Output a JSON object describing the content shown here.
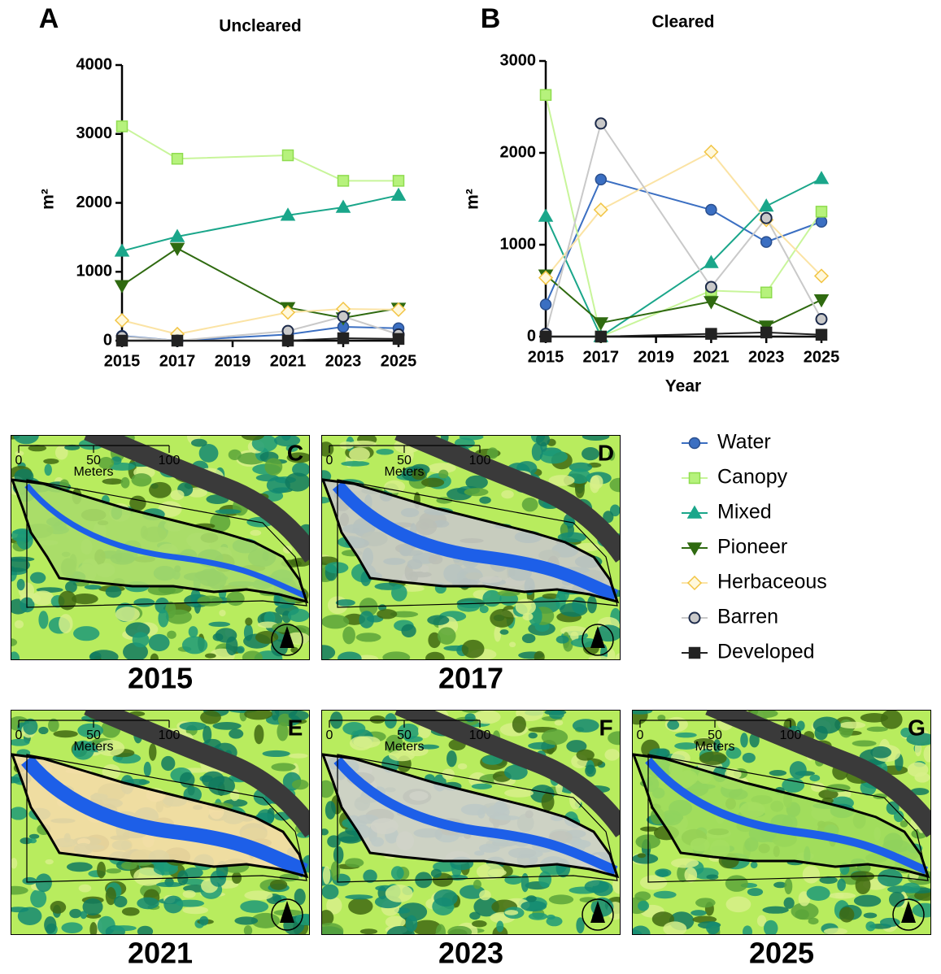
{
  "chart_data": [
    {
      "type": "line",
      "panel": "A",
      "title": "Uncleared",
      "ylabel": "m²",
      "x": [
        2015,
        2017,
        2021,
        2023,
        2025
      ],
      "xlim": [
        2015,
        2025
      ],
      "xticks": [
        2015,
        2017,
        2019,
        2021,
        2023,
        2025
      ],
      "ylim": [
        0,
        4000
      ],
      "yticks": [
        0,
        1000,
        2000,
        3000,
        4000
      ],
      "series": [
        {
          "name": "Water",
          "color": "#3b6fc2",
          "marker": "circle",
          "values": [
            70,
            0,
            90,
            200,
            180
          ]
        },
        {
          "name": "Canopy",
          "color": "#b6f27c",
          "marker": "square",
          "values": [
            3110,
            2640,
            2690,
            2320,
            2320
          ]
        },
        {
          "name": "Mixed",
          "color": "#1aa68a",
          "marker": "triangle",
          "values": [
            1300,
            1510,
            1820,
            1935,
            2110
          ]
        },
        {
          "name": "Pioneer",
          "color": "#2f6a10",
          "marker": "triangle-down",
          "values": [
            800,
            1340,
            480,
            330,
            470
          ]
        },
        {
          "name": "Herbaceous",
          "color": "#fbe3a4",
          "marker": "diamond",
          "values": [
            295,
            95,
            410,
            460,
            450
          ]
        },
        {
          "name": "Barren",
          "color": "#c9c9c9",
          "marker": "circle-outline",
          "values": [
            60,
            0,
            140,
            350,
            90
          ]
        },
        {
          "name": "Developed",
          "color": "#222222",
          "marker": "square",
          "values": [
            0,
            0,
            0,
            35,
            25
          ]
        }
      ]
    },
    {
      "type": "line",
      "panel": "B",
      "title": "Cleared",
      "ylabel": "m²",
      "xlabel": "Year",
      "x": [
        2015,
        2017,
        2021,
        2023,
        2025
      ],
      "xlim": [
        2015,
        2025
      ],
      "xticks": [
        2015,
        2017,
        2019,
        2021,
        2023,
        2025
      ],
      "ylim": [
        0,
        3000
      ],
      "yticks": [
        0,
        1000,
        2000,
        3000
      ],
      "series": [
        {
          "name": "Water",
          "color": "#3b6fc2",
          "marker": "circle",
          "values": [
            350,
            1710,
            1380,
            1030,
            1250
          ]
        },
        {
          "name": "Canopy",
          "color": "#b6f27c",
          "marker": "square",
          "values": [
            2630,
            0,
            500,
            480,
            1360
          ]
        },
        {
          "name": "Mixed",
          "color": "#1aa68a",
          "marker": "triangle",
          "values": [
            1310,
            0,
            805,
            1420,
            1720
          ]
        },
        {
          "name": "Pioneer",
          "color": "#2f6a10",
          "marker": "triangle-down",
          "values": [
            670,
            150,
            380,
            115,
            400
          ]
        },
        {
          "name": "Herbaceous",
          "color": "#fbe3a4",
          "marker": "diamond",
          "values": [
            640,
            1380,
            2010,
            1270,
            660
          ]
        },
        {
          "name": "Barren",
          "color": "#c9c9c9",
          "marker": "circle-outline",
          "values": [
            30,
            2320,
            540,
            1290,
            190
          ]
        },
        {
          "name": "Developed",
          "color": "#222222",
          "marker": "square",
          "values": [
            0,
            0,
            30,
            45,
            20
          ]
        }
      ]
    }
  ],
  "maps": [
    {
      "panel": "C",
      "year": "2015"
    },
    {
      "panel": "D",
      "year": "2017"
    },
    {
      "panel": "E",
      "year": "2021"
    },
    {
      "panel": "F",
      "year": "2023"
    },
    {
      "panel": "G",
      "year": "2025"
    }
  ],
  "scale": {
    "ticks": [
      "0",
      "50",
      "100"
    ],
    "unit": "Meters"
  }
}
